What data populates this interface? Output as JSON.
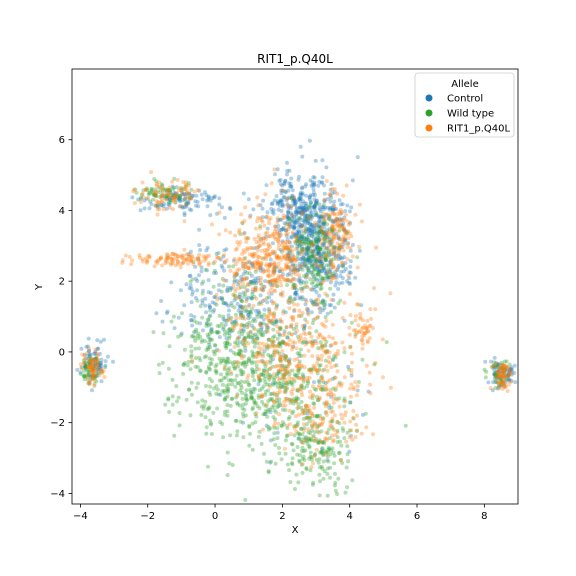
{
  "chart_data": {
    "type": "scatter",
    "title": "RIT1_p.Q40L",
    "xlabel": "X",
    "ylabel": "Y",
    "xlim": [
      -4.25,
      9.0
    ],
    "ylim": [
      -4.3,
      8.0
    ],
    "xticks": [
      -4,
      -2,
      0,
      2,
      4,
      6,
      8
    ],
    "yticks": [
      -4,
      -2,
      0,
      2,
      4,
      6
    ],
    "grid": false,
    "legend": {
      "title": "Allele",
      "placement": "top-right",
      "entries": [
        "Control",
        "Wild type",
        "RIT1_p.Q40L"
      ]
    },
    "series": [
      {
        "name": "Control",
        "color": "#1f77b4",
        "clusters": [
          {
            "center": [
              3.0,
              3.0
            ],
            "spread": [
              0.5,
              0.9
            ],
            "weight": 0.42
          },
          {
            "center": [
              2.3,
              4.1
            ],
            "spread": [
              0.4,
              0.45
            ],
            "weight": 0.14
          },
          {
            "center": [
              0.8,
              1.6
            ],
            "spread": [
              0.9,
              0.8
            ],
            "weight": 0.2
          },
          {
            "center": [
              -1.0,
              4.3
            ],
            "spread": [
              0.6,
              0.2
            ],
            "weight": 0.08
          },
          {
            "center": [
              -3.6,
              -0.3
            ],
            "spread": [
              0.2,
              0.3
            ],
            "weight": 0.06
          },
          {
            "center": [
              8.5,
              -0.6
            ],
            "spread": [
              0.2,
              0.2
            ],
            "weight": 0.06
          },
          {
            "center": [
              2.5,
              -0.5
            ],
            "spread": [
              1.0,
              1.2
            ],
            "weight": 0.04
          }
        ]
      },
      {
        "name": "Wild type",
        "color": "#2ca02c",
        "clusters": [
          {
            "center": [
              2.0,
              -1.0
            ],
            "spread": [
              1.1,
              1.2
            ],
            "weight": 0.34
          },
          {
            "center": [
              3.0,
              -2.8
            ],
            "spread": [
              0.45,
              0.5
            ],
            "weight": 0.1
          },
          {
            "center": [
              0.4,
              -0.7
            ],
            "spread": [
              0.8,
              0.8
            ],
            "weight": 0.14
          },
          {
            "center": [
              3.0,
              2.7
            ],
            "spread": [
              0.4,
              0.7
            ],
            "weight": 0.14
          },
          {
            "center": [
              0.8,
              1.0
            ],
            "spread": [
              0.8,
              0.9
            ],
            "weight": 0.12
          },
          {
            "center": [
              -1.5,
              4.5
            ],
            "spread": [
              0.4,
              0.15
            ],
            "weight": 0.05
          },
          {
            "center": [
              -3.7,
              -0.5
            ],
            "spread": [
              0.15,
              0.2
            ],
            "weight": 0.04
          },
          {
            "center": [
              8.4,
              -0.6
            ],
            "spread": [
              0.2,
              0.2
            ],
            "weight": 0.03
          },
          {
            "center": [
              -0.5,
              0.0
            ],
            "spread": [
              0.6,
              0.6
            ],
            "weight": 0.04
          }
        ]
      },
      {
        "name": "RIT1_p.Q40L",
        "color": "#ff7f0e",
        "clusters": [
          {
            "center": [
              1.6,
              2.7
            ],
            "spread": [
              0.55,
              0.65
            ],
            "weight": 0.26
          },
          {
            "center": [
              3.6,
              3.3
            ],
            "spread": [
              0.3,
              0.55
            ],
            "weight": 0.1
          },
          {
            "center": [
              -1.1,
              2.6
            ],
            "spread": [
              0.75,
              0.1
            ],
            "weight": 0.08
          },
          {
            "center": [
              -1.4,
              4.4
            ],
            "spread": [
              0.45,
              0.25
            ],
            "weight": 0.06
          },
          {
            "center": [
              2.4,
              0.2
            ],
            "spread": [
              1.0,
              1.0
            ],
            "weight": 0.26
          },
          {
            "center": [
              4.4,
              0.6
            ],
            "spread": [
              0.15,
              0.25
            ],
            "weight": 0.03
          },
          {
            "center": [
              -3.65,
              -0.45
            ],
            "spread": [
              0.15,
              0.25
            ],
            "weight": 0.05
          },
          {
            "center": [
              8.6,
              -0.7
            ],
            "spread": [
              0.15,
              0.2
            ],
            "weight": 0.05
          },
          {
            "center": [
              3.2,
              -1.5
            ],
            "spread": [
              0.6,
              0.8
            ],
            "weight": 0.11
          }
        ]
      }
    ]
  }
}
